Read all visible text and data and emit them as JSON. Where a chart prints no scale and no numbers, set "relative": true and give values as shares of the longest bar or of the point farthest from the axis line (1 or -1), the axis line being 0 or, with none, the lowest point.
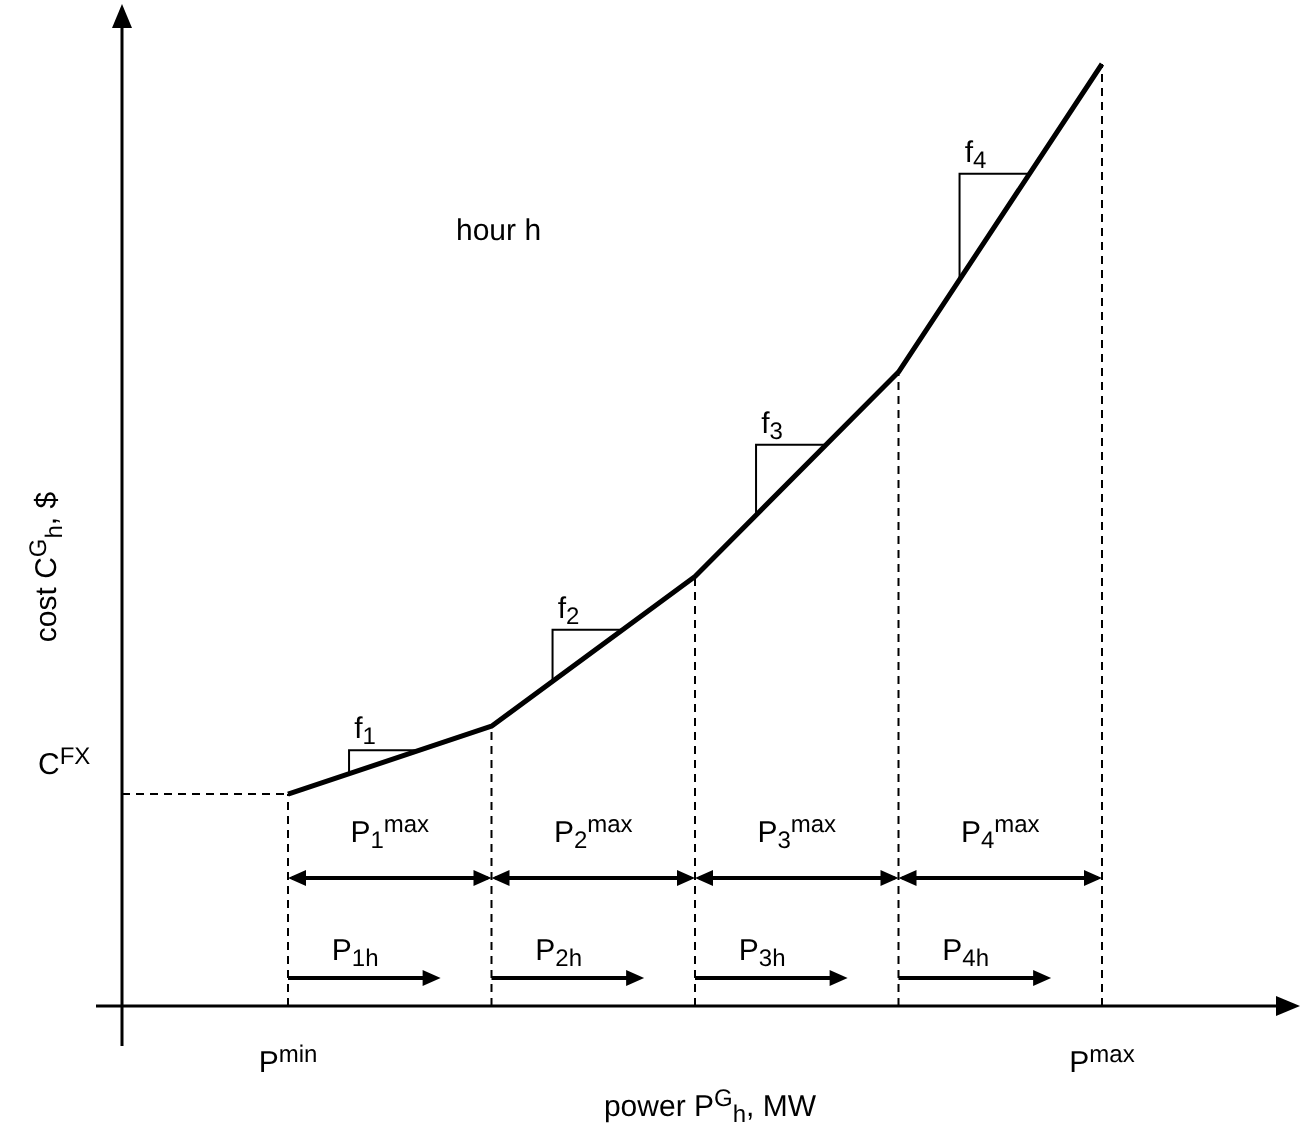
{
  "chart_data": {
    "type": "line",
    "relative": true,
    "title": "hour h",
    "xlabel": "power  P$^{G}$$_{h}$, MW",
    "ylabel": "cost  C$^{G}$$_{h}$, $",
    "categories": [
      "P$^{min}$",
      null,
      null,
      null,
      "P$^{max}$"
    ],
    "series": [
      {
        "color": "#000000",
        "values": [
          0.225,
          0.297,
          0.456,
          0.673,
          1
        ]
      }
    ],
    "marker": "none",
    "line_style": "solid",
    "grid": "x",
    "legend": false,
    "ref_lines": [
      {
        "axis": "y",
        "value": 0.225,
        "label": "C$^{FX}$",
        "line_style": "dashed"
      },
      {
        "axis": "x",
        "value": "P$^{min}$",
        "line_style": "dashed"
      }
    ],
    "annotations": [
      "f$_{1}$",
      "f$_{2}$",
      "f$_{3}$",
      "f$_{4}$",
      "P$_{1}$$^{max}$",
      "P$_{2}$$^{max}$",
      "P$_{3}$$^{max}$",
      "P$_{4}$$^{max}$",
      "P$_{1h}$",
      "P$_{2h}$",
      "P$_{3h}$",
      "P$_{4h}$"
    ]
  }
}
